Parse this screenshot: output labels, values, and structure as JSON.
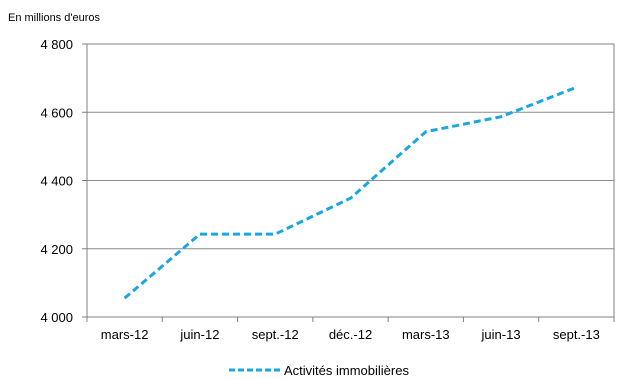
{
  "chart_data": {
    "type": "line",
    "unit_label": "En millions d'euros",
    "categories": [
      "mars-12",
      "juin-12",
      "sept.-12",
      "déc.-12",
      "mars-13",
      "juin-13",
      "sept.-13"
    ],
    "y_ticks": [
      "4 000",
      "4 200",
      "4 400",
      "4 600",
      "4 800"
    ],
    "y_tick_values": [
      4000,
      4200,
      4400,
      4600,
      4800
    ],
    "ylim": [
      4000,
      4800
    ],
    "grid": true,
    "legend_position": "bottom-center",
    "series": [
      {
        "name": "Activités immobilières",
        "color": "#1aa7e0",
        "line_style": "dashed",
        "values": [
          4055,
          4243,
          4243,
          4348,
          4543,
          4587,
          4673
        ]
      }
    ]
  }
}
